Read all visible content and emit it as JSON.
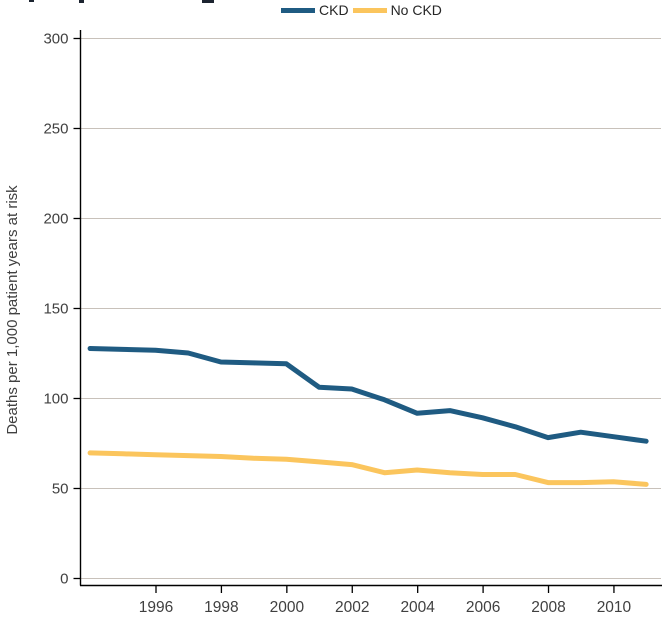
{
  "legend": {
    "items": [
      {
        "label": "CKD",
        "color": "#1F5B82"
      },
      {
        "label": "No CKD",
        "color": "#FBC55D"
      }
    ]
  },
  "chart_data": {
    "type": "line",
    "title": "",
    "xlabel": "",
    "ylabel": "Deaths per 1,000 patient years at risk",
    "ylim": [
      0,
      300
    ],
    "ytick_step": 50,
    "yticks": [
      0,
      50,
      100,
      150,
      200,
      250,
      300
    ],
    "xticks": [
      1996,
      1998,
      2000,
      2002,
      2004,
      2006,
      2008,
      2010
    ],
    "grid": true,
    "legend_position": "top",
    "x": [
      1994,
      1995,
      1996,
      1997,
      1998,
      1999,
      2000,
      2001,
      2002,
      2003,
      2004,
      2005,
      2006,
      2007,
      2008,
      2009,
      2010,
      2011
    ],
    "series": [
      {
        "name": "CKD",
        "color": "#1F5B82",
        "values": [
          127.5,
          127,
          126.5,
          125,
          120,
          119.5,
          119,
          106,
          105,
          99,
          91.5,
          93,
          89,
          84,
          78,
          81,
          78.5,
          76
        ]
      },
      {
        "name": "No CKD",
        "color": "#FBC55D",
        "values": [
          69.5,
          69,
          68.5,
          68,
          67.5,
          66.5,
          66,
          64.5,
          63,
          58.5,
          60,
          58.5,
          57.5,
          57.5,
          53,
          53,
          53.5,
          52
        ]
      }
    ],
    "colors": {
      "gridline": "#C8C1BA",
      "axis": "#000000",
      "tick_label": "#404040"
    }
  }
}
